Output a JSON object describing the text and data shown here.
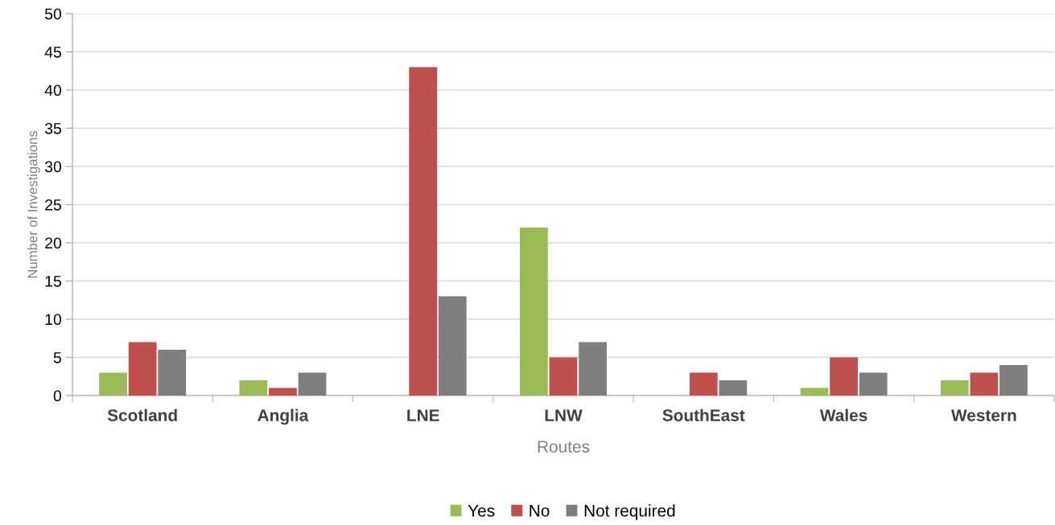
{
  "chart_data": {
    "type": "bar",
    "xlabel": "Routes",
    "ylabel": "Number of Investigations",
    "categories": [
      "Scotland",
      "Anglia",
      "LNE",
      "LNW",
      "SouthEast",
      "Wales",
      "Western"
    ],
    "series": [
      {
        "name": "Yes",
        "color": "#9bbb59",
        "values": [
          3,
          2,
          0,
          22,
          0,
          1,
          2
        ]
      },
      {
        "name": "No",
        "color": "#c0504d",
        "values": [
          7,
          1,
          43,
          5,
          3,
          5,
          3
        ]
      },
      {
        "name": "Not required",
        "color": "#7f7f7f",
        "values": [
          6,
          3,
          13,
          7,
          2,
          3,
          4
        ]
      }
    ],
    "ylim": [
      0,
      50
    ],
    "yticks": [
      0,
      5,
      10,
      15,
      20,
      25,
      30,
      35,
      40,
      45,
      50
    ],
    "grid": "y",
    "legend": "bottom"
  }
}
